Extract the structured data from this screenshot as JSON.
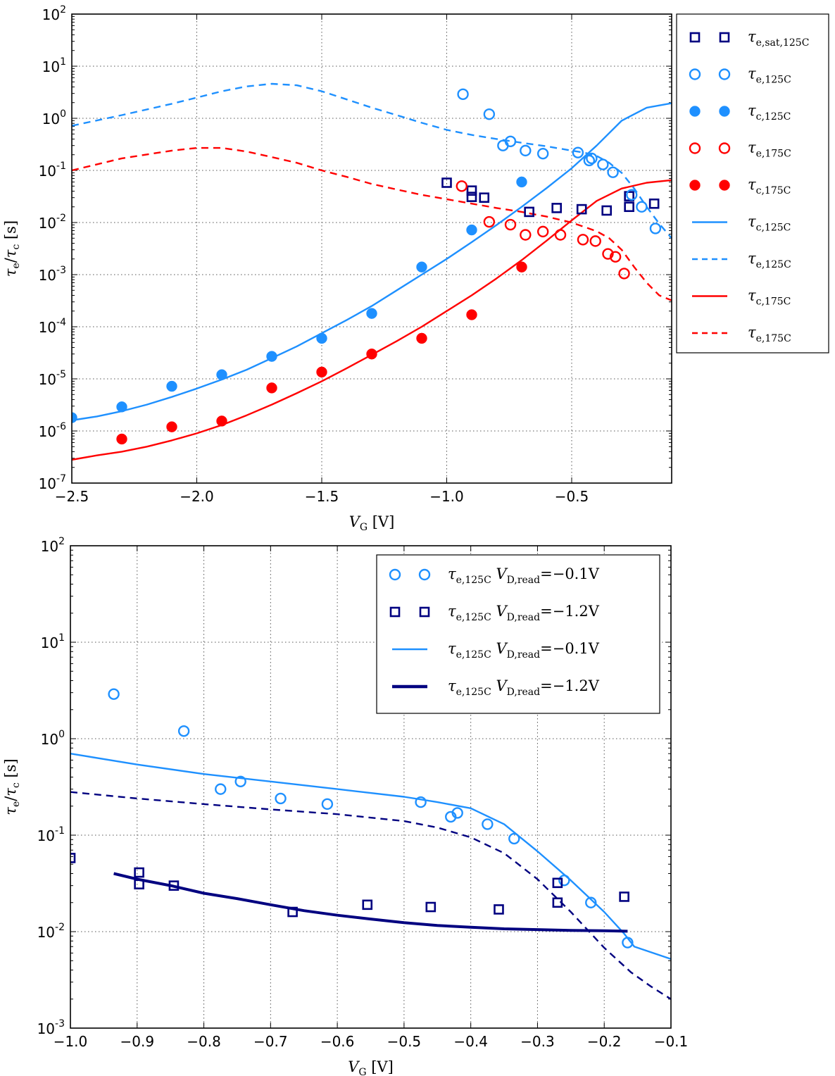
{
  "chart_data": [
    {
      "type": "scatter",
      "title": "",
      "xlabel": "V_G [V]",
      "ylabel": "τ_e/τ_c [s]",
      "xscale": "linear",
      "yscale": "log",
      "xlim": [
        -2.5,
        -0.1
      ],
      "ylim": [
        1e-07,
        100
      ],
      "grid": true,
      "legend_position": "outside-right",
      "x_ticks": [
        -2.5,
        -2.0,
        -1.5,
        -1.0,
        -0.5
      ],
      "x_tick_labels": [
        "−2.5",
        "−2.0",
        "−1.5",
        "−1.0",
        "−0.5"
      ],
      "y_ticks": [
        2,
        1,
        0,
        -1,
        -2,
        -3,
        -4,
        -5,
        -6,
        -7
      ],
      "y_tick_labels": [
        {
          "base": "10",
          "exp": "2"
        },
        {
          "base": "10",
          "exp": "1"
        },
        {
          "base": "10",
          "exp": "0"
        },
        {
          "base": "10",
          "exp": "-1"
        },
        {
          "base": "10",
          "exp": "-2"
        },
        {
          "base": "10",
          "exp": "-3"
        },
        {
          "base": "10",
          "exp": "-4"
        },
        {
          "base": "10",
          "exp": "-5"
        },
        {
          "base": "10",
          "exp": "-6"
        },
        {
          "base": "10",
          "exp": "-7"
        }
      ],
      "series": [
        {
          "name": "τe,sat,125C",
          "label_main": "τ",
          "label_sub": "e,sat,125C",
          "kind": "marker",
          "marker": "square-open",
          "color": "#000080",
          "x": [
            -1.0,
            -0.9,
            -0.9,
            -0.85,
            -0.67,
            -0.56,
            -0.46,
            -0.36,
            -0.27,
            -0.27,
            -0.17
          ],
          "y": [
            0.058,
            0.041,
            0.031,
            0.03,
            0.016,
            0.019,
            0.018,
            0.017,
            0.032,
            0.02,
            0.023
          ]
        },
        {
          "name": "τe,125C",
          "label_main": "τ",
          "label_sub": "e,125C",
          "kind": "marker",
          "marker": "circle-open",
          "color": "#1e90ff",
          "x": [
            -0.935,
            -0.83,
            -0.775,
            -0.745,
            -0.685,
            -0.615,
            -0.475,
            -0.43,
            -0.42,
            -0.375,
            -0.335,
            -0.26,
            -0.22,
            -0.165
          ],
          "y": [
            2.9,
            1.2,
            0.3,
            0.36,
            0.24,
            0.21,
            0.22,
            0.155,
            0.17,
            0.13,
            0.092,
            0.034,
            0.02,
            0.0077
          ]
        },
        {
          "name": "τc,125C",
          "label_main": "τ",
          "label_sub": "c,125C",
          "kind": "marker",
          "marker": "circle-filled",
          "color": "#1e90ff",
          "x": [
            -2.5,
            -2.3,
            -2.1,
            -1.9,
            -1.7,
            -1.5,
            -1.3,
            -1.1,
            -0.9,
            -0.7
          ],
          "y": [
            1.8e-06,
            2.9e-06,
            7.2e-06,
            1.2e-05,
            2.7e-05,
            6e-05,
            0.00018,
            0.0014,
            0.0072,
            0.06
          ]
        },
        {
          "name": "τe,175C",
          "label_main": "τ",
          "label_sub": "e,175C",
          "kind": "marker",
          "marker": "circle-open",
          "color": "#ff0000",
          "x": [
            -0.94,
            -0.83,
            -0.745,
            -0.685,
            -0.615,
            -0.545,
            -0.455,
            -0.405,
            -0.355,
            -0.325,
            -0.29
          ],
          "y": [
            0.05,
            0.0103,
            0.0091,
            0.0058,
            0.0067,
            0.0058,
            0.0047,
            0.0044,
            0.0025,
            0.0022,
            0.00105
          ]
        },
        {
          "name": "τc,175C",
          "label_main": "τ",
          "label_sub": "c,175C",
          "kind": "marker",
          "marker": "circle-filled",
          "color": "#ff0000",
          "x": [
            -2.3,
            -2.1,
            -1.9,
            -1.7,
            -1.5,
            -1.3,
            -1.1,
            -0.9,
            -0.7
          ],
          "y": [
            7e-07,
            1.2e-06,
            1.55e-06,
            6.7e-06,
            1.35e-05,
            3e-05,
            6e-05,
            0.00017,
            0.0014
          ]
        },
        {
          "name": "τc,125C",
          "label_main": "τ",
          "label_sub": "c,125C",
          "kind": "line",
          "style": "solid",
          "color": "#1e90ff",
          "x": [
            -2.5,
            -2.4,
            -2.3,
            -2.2,
            -2.1,
            -2.0,
            -1.9,
            -1.8,
            -1.7,
            -1.6,
            -1.5,
            -1.4,
            -1.3,
            -1.2,
            -1.1,
            -1.0,
            -0.9,
            -0.8,
            -0.7,
            -0.6,
            -0.5,
            -0.4,
            -0.3,
            -0.2,
            -0.1
          ],
          "y": [
            1.6e-06,
            1.9e-06,
            2.4e-06,
            3.2e-06,
            4.5e-06,
            6.5e-06,
            9.7e-06,
            1.5e-05,
            2.5e-05,
            4.2e-05,
            7.5e-05,
            0.000135,
            0.00025,
            0.0005,
            0.001,
            0.002,
            0.0042,
            0.009,
            0.02,
            0.046,
            0.11,
            0.3,
            0.9,
            1.6,
            1.95
          ]
        },
        {
          "name": "τe,125C",
          "label_main": "τ",
          "label_sub": "e,125C",
          "kind": "line",
          "style": "dashed",
          "color": "#1e90ff",
          "x": [
            -2.5,
            -2.3,
            -2.1,
            -2.0,
            -1.9,
            -1.8,
            -1.7,
            -1.6,
            -1.5,
            -1.4,
            -1.3,
            -1.2,
            -1.1,
            -1.0,
            -0.9,
            -0.8,
            -0.7,
            -0.6,
            -0.5,
            -0.45,
            -0.4,
            -0.35,
            -0.3,
            -0.25,
            -0.2,
            -0.15,
            -0.1
          ],
          "y": [
            0.72,
            1.15,
            1.9,
            2.5,
            3.3,
            4.1,
            4.6,
            4.3,
            3.3,
            2.3,
            1.6,
            1.15,
            0.82,
            0.6,
            0.48,
            0.4,
            0.34,
            0.29,
            0.24,
            0.22,
            0.19,
            0.14,
            0.09,
            0.045,
            0.02,
            0.0095,
            0.005
          ]
        },
        {
          "name": "τc,175C",
          "label_main": "τ",
          "label_sub": "c,175C",
          "kind": "line",
          "style": "solid",
          "color": "#ff0000",
          "x": [
            -2.5,
            -2.4,
            -2.3,
            -2.2,
            -2.1,
            -2.0,
            -1.9,
            -1.8,
            -1.7,
            -1.6,
            -1.5,
            -1.4,
            -1.3,
            -1.2,
            -1.1,
            -1.0,
            -0.9,
            -0.8,
            -0.7,
            -0.6,
            -0.5,
            -0.4,
            -0.3,
            -0.2,
            -0.1
          ],
          "y": [
            2.8e-07,
            3.4e-07,
            4e-07,
            5e-07,
            6.6e-07,
            9e-07,
            1.3e-06,
            2e-06,
            3.2e-06,
            5.3e-06,
            9e-06,
            1.6e-05,
            2.9e-05,
            5.3e-05,
            0.0001,
            0.0002,
            0.0004,
            0.00085,
            0.0019,
            0.0045,
            0.011,
            0.026,
            0.045,
            0.058,
            0.065
          ]
        },
        {
          "name": "τe,175C",
          "label_main": "τ",
          "label_sub": "e,175C",
          "kind": "line",
          "style": "dashed",
          "color": "#ff0000",
          "x": [
            -2.5,
            -2.3,
            -2.1,
            -2.0,
            -1.9,
            -1.8,
            -1.7,
            -1.6,
            -1.5,
            -1.4,
            -1.3,
            -1.2,
            -1.1,
            -1.0,
            -0.9,
            -0.8,
            -0.7,
            -0.6,
            -0.5,
            -0.4,
            -0.35,
            -0.3,
            -0.25,
            -0.2,
            -0.15,
            -0.1
          ],
          "y": [
            0.1,
            0.17,
            0.24,
            0.27,
            0.27,
            0.23,
            0.18,
            0.14,
            0.1,
            0.075,
            0.055,
            0.043,
            0.034,
            0.028,
            0.023,
            0.019,
            0.016,
            0.013,
            0.01,
            0.0068,
            0.005,
            0.003,
            0.0014,
            0.0007,
            0.0004,
            0.00032
          ]
        }
      ]
    },
    {
      "type": "scatter",
      "title": "",
      "xlabel": "V_G [V]",
      "ylabel": "τ_e/τ_c [s]",
      "xscale": "linear",
      "yscale": "log",
      "xlim": [
        -1.0,
        -0.1
      ],
      "ylim": [
        0.001,
        100
      ],
      "grid": true,
      "legend_position": "top-right",
      "x_ticks": [
        -1.0,
        -0.9,
        -0.8,
        -0.7,
        -0.6,
        -0.5,
        -0.4,
        -0.3,
        -0.2,
        -0.1
      ],
      "x_tick_labels": [
        "−1.0",
        "−0.9",
        "−0.8",
        "−0.7",
        "−0.6",
        "−0.5",
        "−0.4",
        "−0.3",
        "−0.2",
        "−0.1"
      ],
      "y_ticks": [
        2,
        1,
        0,
        -1,
        -2,
        -3
      ],
      "y_tick_labels": [
        {
          "base": "10",
          "exp": "2"
        },
        {
          "base": "10",
          "exp": "1"
        },
        {
          "base": "10",
          "exp": "0"
        },
        {
          "base": "10",
          "exp": "-1"
        },
        {
          "base": "10",
          "exp": "-2"
        },
        {
          "base": "10",
          "exp": "-3"
        }
      ],
      "series": [
        {
          "name": "τe,125C VD,read=−0.1V",
          "label_main": "τ",
          "label_sub": "e,125C",
          "label_v": "V",
          "label_vsub": "D,read",
          "label_tail": "=−0.1V",
          "kind": "marker",
          "marker": "circle-open",
          "color": "#1e90ff",
          "in_legend": true,
          "x": [
            -0.935,
            -0.83,
            -0.775,
            -0.745,
            -0.685,
            -0.615,
            -0.475,
            -0.43,
            -0.42,
            -0.375,
            -0.335,
            -0.26,
            -0.22,
            -0.165
          ],
          "y": [
            2.9,
            1.2,
            0.3,
            0.36,
            0.24,
            0.21,
            0.22,
            0.155,
            0.17,
            0.13,
            0.092,
            0.034,
            0.02,
            0.0077
          ]
        },
        {
          "name": "τe,125C VD,read=−1.2V",
          "label_main": "τ",
          "label_sub": "e,125C",
          "label_v": "V",
          "label_vsub": "D,read",
          "label_tail": "=−1.2V",
          "kind": "marker",
          "marker": "square-open",
          "color": "#000080",
          "in_legend": true,
          "x": [
            -1.0,
            -0.897,
            -0.897,
            -0.845,
            -0.667,
            -0.555,
            -0.46,
            -0.358,
            -0.27,
            -0.27,
            -0.17
          ],
          "y": [
            0.058,
            0.041,
            0.031,
            0.03,
            0.016,
            0.019,
            0.018,
            0.017,
            0.032,
            0.02,
            0.023
          ]
        },
        {
          "name": "τe,125C VD,read=−0.1V",
          "label_main": "τ",
          "label_sub": "e,125C",
          "label_v": "V",
          "label_vsub": "D,read",
          "label_tail": "=−0.1V",
          "kind": "line",
          "style": "solid",
          "color": "#1e90ff",
          "in_legend": true,
          "x": [
            -1.0,
            -0.9,
            -0.8,
            -0.7,
            -0.6,
            -0.5,
            -0.45,
            -0.4,
            -0.35,
            -0.3,
            -0.25,
            -0.2,
            -0.17,
            -0.155,
            -0.1
          ],
          "y": [
            0.7,
            0.54,
            0.43,
            0.36,
            0.3,
            0.25,
            0.22,
            0.19,
            0.13,
            0.068,
            0.034,
            0.016,
            0.0095,
            0.007,
            0.0052
          ]
        },
        {
          "name": "τe,125C VD,read=−1.2V",
          "label_main": "τ",
          "label_sub": "e,125C",
          "label_v": "V",
          "label_vsub": "D,read",
          "label_tail": "=−1.2V",
          "kind": "line",
          "style": "thick",
          "color": "#000080",
          "in_legend": true,
          "x": [
            -0.935,
            -0.9,
            -0.85,
            -0.8,
            -0.75,
            -0.7,
            -0.65,
            -0.6,
            -0.55,
            -0.5,
            -0.45,
            -0.4,
            -0.35,
            -0.3,
            -0.25,
            -0.2,
            -0.165
          ],
          "y": [
            0.04,
            0.035,
            0.03,
            0.025,
            0.022,
            0.019,
            0.0165,
            0.0148,
            0.0135,
            0.0124,
            0.0116,
            0.0111,
            0.0107,
            0.0105,
            0.0103,
            0.0102,
            0.0101
          ]
        },
        {
          "name": "τe,125C (dashed, unlabeled)",
          "kind": "line",
          "style": "dashed",
          "color": "#000080",
          "in_legend": false,
          "x": [
            -1.0,
            -0.9,
            -0.8,
            -0.7,
            -0.6,
            -0.5,
            -0.45,
            -0.4,
            -0.35,
            -0.3,
            -0.25,
            -0.2,
            -0.16,
            -0.13,
            -0.1
          ],
          "y": [
            0.28,
            0.24,
            0.21,
            0.185,
            0.165,
            0.14,
            0.12,
            0.095,
            0.065,
            0.035,
            0.016,
            0.0068,
            0.0038,
            0.0027,
            0.002
          ]
        }
      ]
    }
  ]
}
